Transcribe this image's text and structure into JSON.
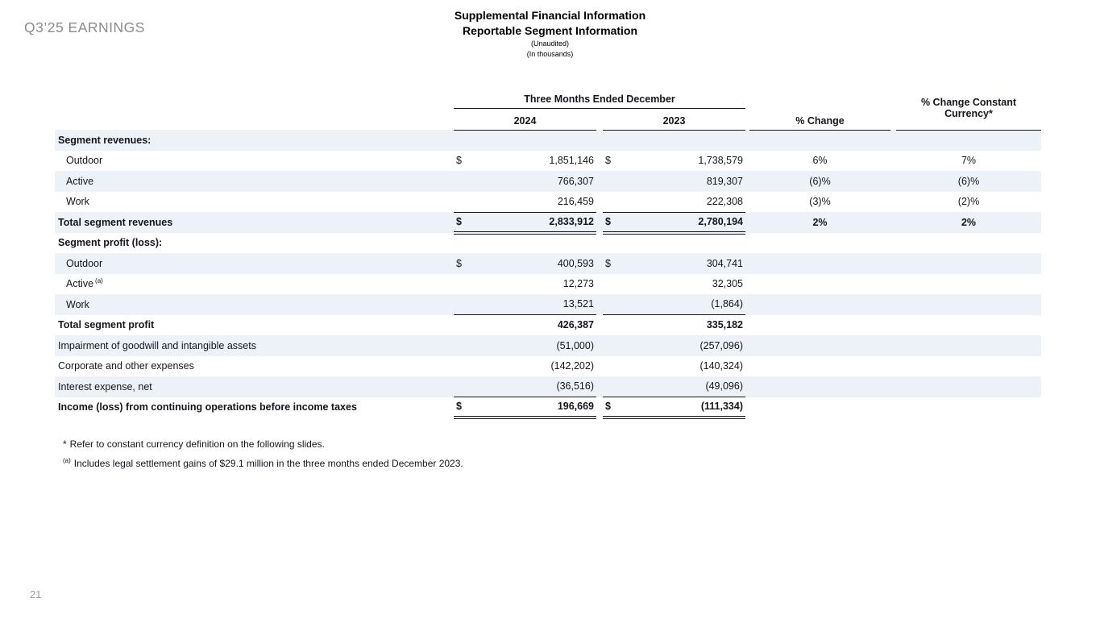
{
  "slide": {
    "eyebrow": "Q3’25 EARNINGS",
    "title_line1": "Supplemental Financial Information",
    "title_line2": "Reportable Segment Information",
    "subtitle_line1": "(Unaudited)",
    "subtitle_line2": "(In thousands)",
    "page_number": "21"
  },
  "colors": {
    "row_band": "#edf1f8",
    "text_ink": "#15151d",
    "eyebrow_gray": "#8c8c8c"
  },
  "table": {
    "group_header": "Three Months Ended December",
    "col_2024": "2024",
    "col_2023": "2023",
    "col_pct": "% Change",
    "col_pcc": "% Change Constant Currency*",
    "rows": [
      {
        "label": "Segment revenues:",
        "bold": true
      },
      {
        "label": "Outdoor",
        "indent": true,
        "d24": "$",
        "v24": "1,851,146",
        "d23": "$",
        "v23": "1,738,579",
        "pct": "6%",
        "pcc": "7%"
      },
      {
        "label": "Active",
        "indent": true,
        "v24": "766,307",
        "v23": "819,307",
        "pct": "(6)%",
        "pcc": "(6)%"
      },
      {
        "label": "Work",
        "indent": true,
        "v24": "216,459",
        "v23": "222,308",
        "pct": "(3)%",
        "pcc": "(2)%",
        "rule": "single"
      },
      {
        "label": "Total segment revenues",
        "bold": true,
        "values_bold": true,
        "d24": "$",
        "v24": "2,833,912",
        "d23": "$",
        "v23": "2,780,194",
        "pct": "2%",
        "pcc": "2%",
        "rule": "double"
      },
      {
        "label": "Segment profit (loss):",
        "bold": true
      },
      {
        "label": "Outdoor",
        "indent": true,
        "d24": "$",
        "v24": "400,593",
        "d23": "$",
        "v23": "304,741"
      },
      {
        "label": "Active",
        "sup": "(a)",
        "indent": true,
        "v24": "12,273",
        "v23": "32,305"
      },
      {
        "label": "Work",
        "indent": true,
        "v24": "13,521",
        "v23": "(1,864)",
        "rule": "single"
      },
      {
        "label": "Total segment profit",
        "bold": true,
        "values_bold": true,
        "v24": "426,387",
        "v23": "335,182"
      },
      {
        "label": "Impairment of goodwill and intangible assets",
        "v24": "(51,000)",
        "v23": "(257,096)"
      },
      {
        "label": "Corporate and other expenses",
        "v24": "(142,202)",
        "v23": "(140,324)"
      },
      {
        "label": "Interest expense, net",
        "v24": "(36,516)",
        "v23": "(49,096)",
        "rule": "single"
      },
      {
        "label": "Income (loss) from continuing operations before income taxes",
        "bold": true,
        "values_bold": true,
        "d24": "$",
        "v24": "196,669",
        "d23": "$",
        "v23": "(111,334)",
        "rule": "double"
      }
    ]
  },
  "footnotes": {
    "star_marker": "*",
    "star_text": "Refer to constant currency definition on the following slides.",
    "a_marker": "(a)",
    "a_text": "Includes legal settlement gains of $29.1 million in the three months ended December 2023."
  }
}
